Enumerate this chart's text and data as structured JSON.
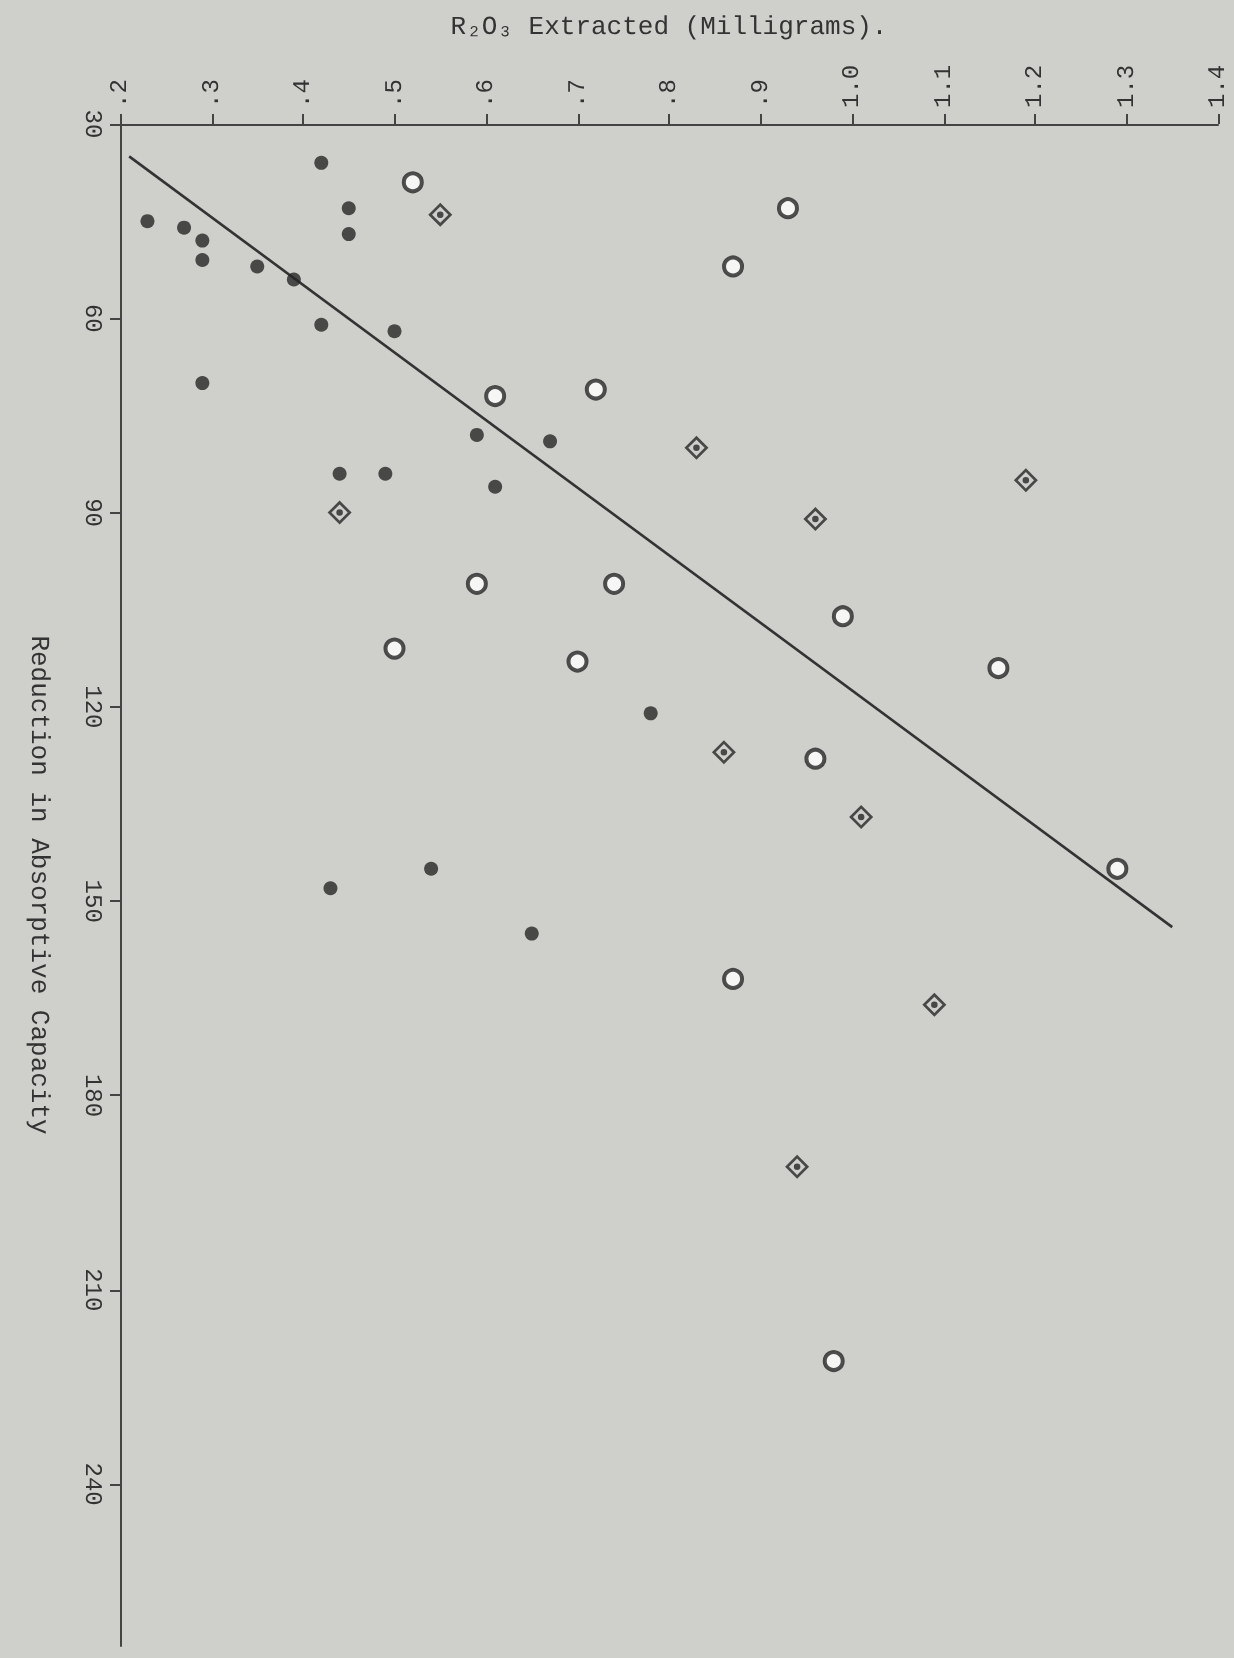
{
  "chart_data": {
    "type": "scatter",
    "xlabel": "R₂O₃ Extracted (Milligrams).",
    "ylabel": "Reduction in Absorptive Capacity",
    "xlim": [
      0.2,
      1.4
    ],
    "xticks": [
      {
        "value": 0.2,
        "label": ".2"
      },
      {
        "value": 0.3,
        "label": ".3"
      },
      {
        "value": 0.4,
        "label": ".4"
      },
      {
        "value": 0.5,
        "label": ".5"
      },
      {
        "value": 0.6,
        "label": ".6"
      },
      {
        "value": 0.7,
        "label": ".7"
      },
      {
        "value": 0.8,
        "label": ".8"
      },
      {
        "value": 0.9,
        "label": ".9"
      },
      {
        "value": 1.0,
        "label": "1.0"
      },
      {
        "value": 1.1,
        "label": "1.1"
      },
      {
        "value": 1.2,
        "label": "1.2"
      },
      {
        "value": 1.3,
        "label": "1.3"
      },
      {
        "value": 1.4,
        "label": "1.4"
      }
    ],
    "ylim": [
      265,
      30
    ],
    "yticks": [
      30,
      60,
      90,
      120,
      150,
      180,
      210,
      240
    ],
    "grid": false,
    "series": [
      {
        "marker": "circle",
        "color": "#262626",
        "x": [
          0.42,
          0.23,
          0.27,
          0.29,
          0.29,
          0.35,
          0.39,
          0.45,
          0.45,
          0.42,
          0.5,
          0.29,
          0.59,
          0.67,
          0.44,
          0.49,
          0.61,
          0.78,
          0.54,
          0.43,
          0.65
        ],
        "values": [
          36,
          45,
          46,
          48,
          51,
          52,
          54,
          43,
          47,
          61,
          62,
          70,
          78,
          79,
          84,
          84,
          86,
          121,
          145,
          148,
          155
        ]
      },
      {
        "marker": "circle",
        "color": "#262626",
        "x": [
          0.52,
          0.93,
          0.87,
          0.61,
          0.72,
          0.59,
          0.74,
          0.99,
          0.5,
          0.7,
          1.16,
          0.96,
          1.29,
          0.87,
          0.98
        ],
        "values": [
          39,
          43,
          52,
          72,
          71,
          101,
          101,
          106,
          111,
          113,
          114,
          128,
          145,
          162,
          221
        ]
      },
      {
        "marker": "diamond",
        "color": "#262626",
        "x": [
          0.55,
          0.83,
          1.19,
          0.44,
          0.96,
          0.86,
          1.01,
          1.09,
          0.94
        ],
        "values": [
          44,
          80,
          85,
          90,
          91,
          127,
          137,
          166,
          191
        ]
      },
      {
        "type": "line",
        "marker": "none",
        "line_style": "solid",
        "color": "#333333",
        "x": [
          0.21,
          1.35
        ],
        "values": [
          35,
          154
        ]
      }
    ]
  }
}
